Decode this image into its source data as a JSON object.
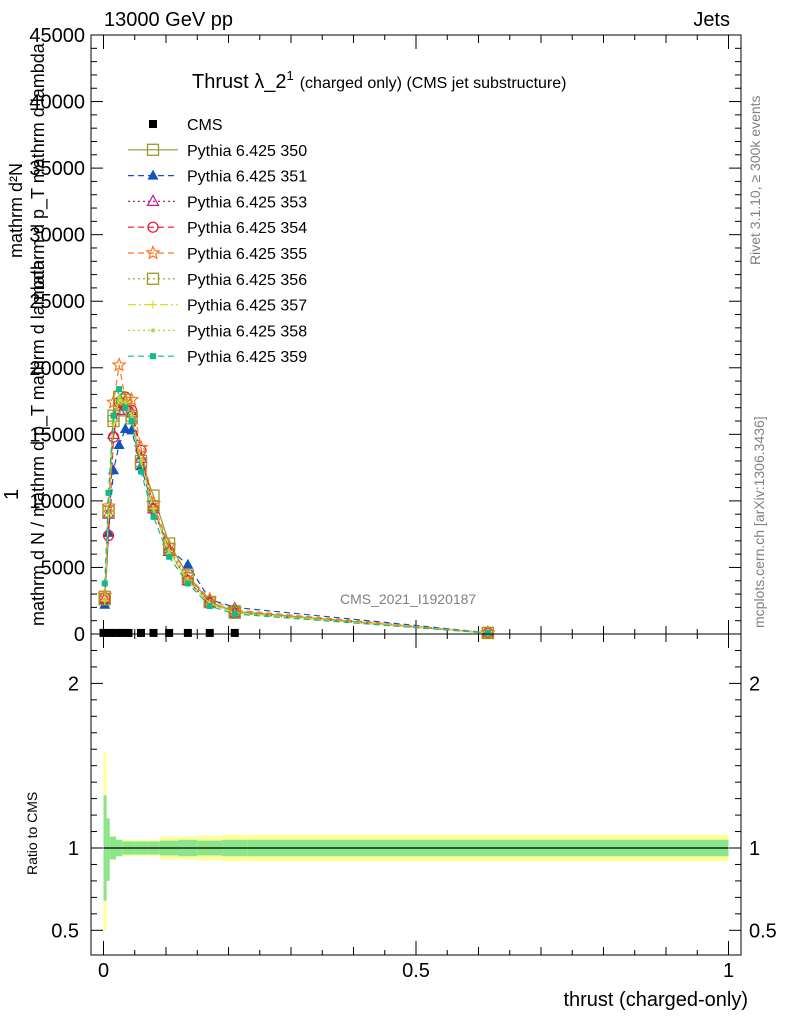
{
  "header": {
    "left": "13000 GeV pp",
    "right": "Jets"
  },
  "side_text": {
    "rivet": "Rivet 3.1.10, ≥ 300k events",
    "mcplots": "mcplots.cern.ch [arXiv:1306.3436]"
  },
  "chart_data": [
    {
      "type": "line",
      "title": "Thrust λ_2",
      "title_sup": "1",
      "title_suffix": "(charged only) (CMS jet substructure)",
      "ylabel_num": "1",
      "ylabel_den": "mathrm d N / mathrm d p_T mathrm d lambda",
      "ylabel_top": "mathrm d²N",
      "ylabel_top_den": "mathrm d p_T mathrm d lambda",
      "watermark": "CMS_2021_I1920187",
      "xlim": [
        -0.02,
        1.02
      ],
      "ylim": [
        0,
        45000
      ],
      "y_ticks": [
        0,
        5000,
        10000,
        15000,
        20000,
        25000,
        30000,
        35000,
        40000,
        45000
      ],
      "y_tick_labels": [
        "0",
        "5000",
        "10000",
        "15000",
        "20000",
        "25000",
        "30000",
        "35000",
        "40000",
        "45000"
      ],
      "legend_position": "top-left",
      "data_series": {
        "name": "CMS",
        "x": [
          0.0,
          0.01,
          0.02,
          0.03,
          0.04,
          0.06,
          0.08,
          0.105,
          0.135,
          0.17,
          0.21
        ],
        "y": [
          80,
          80,
          80,
          80,
          80,
          80,
          80,
          80,
          80,
          80,
          80
        ],
        "color": "#000000",
        "marker": "square-filled"
      },
      "series": [
        {
          "name": "Pythia 6.425 350",
          "color": "#999933",
          "marker": "square-open",
          "dash": "solid",
          "x": [
            0.002,
            0.008,
            0.016,
            0.025,
            0.035,
            0.045,
            0.06,
            0.08,
            0.105,
            0.135,
            0.17,
            0.21,
            0.615
          ],
          "y": [
            2800,
            9200,
            16400,
            17200,
            16800,
            16200,
            12800,
            10400,
            6800,
            4400,
            2400,
            1700,
            80
          ]
        },
        {
          "name": "Pythia 6.425 351",
          "color": "#1155bb",
          "marker": "triangle-filled",
          "dash": "dash",
          "x": [
            0.002,
            0.008,
            0.016,
            0.025,
            0.035,
            0.045,
            0.06,
            0.08,
            0.105,
            0.135,
            0.17,
            0.21,
            0.615
          ],
          "y": [
            2200,
            7600,
            12300,
            14200,
            15400,
            15300,
            12600,
            9400,
            6400,
            5200,
            2600,
            2000,
            100
          ]
        },
        {
          "name": "Pythia 6.425 353",
          "color": "#bb2288",
          "marker": "triangle-open",
          "dash": "dot",
          "x": [
            0.002,
            0.008,
            0.016,
            0.025,
            0.035,
            0.045,
            0.06,
            0.08,
            0.105,
            0.135,
            0.17,
            0.21,
            0.615
          ],
          "y": [
            2600,
            9000,
            15000,
            16800,
            17200,
            16600,
            13200,
            9400,
            6200,
            4000,
            2300,
            1600,
            80
          ]
        },
        {
          "name": "Pythia 6.425 354",
          "color": "#ee1133",
          "marker": "circle-open",
          "dash": "dash",
          "x": [
            0.002,
            0.008,
            0.016,
            0.025,
            0.035,
            0.045,
            0.06,
            0.08,
            0.105,
            0.135,
            0.17,
            0.21,
            0.615
          ],
          "y": [
            2700,
            7400,
            14800,
            17400,
            17800,
            16800,
            13800,
            9400,
            6200,
            4000,
            2300,
            1600,
            80
          ]
        },
        {
          "name": "Pythia 6.425 355",
          "color": "#ff7722",
          "marker": "star-open",
          "dash": "dash",
          "x": [
            0.002,
            0.008,
            0.016,
            0.025,
            0.035,
            0.045,
            0.06,
            0.08,
            0.105,
            0.135,
            0.17,
            0.21,
            0.615
          ],
          "y": [
            2900,
            9600,
            17400,
            20200,
            17600,
            17600,
            14000,
            9800,
            6600,
            4400,
            2600,
            1800,
            90
          ]
        },
        {
          "name": "Pythia 6.425 356",
          "color": "#999922",
          "marker": "square-open",
          "dash": "dot",
          "x": [
            0.002,
            0.008,
            0.016,
            0.025,
            0.035,
            0.045,
            0.06,
            0.08,
            0.105,
            0.135,
            0.17,
            0.21,
            0.615
          ],
          "y": [
            2600,
            9200,
            16000,
            17800,
            17600,
            16400,
            13000,
            9600,
            6400,
            4200,
            2400,
            1600,
            80
          ]
        },
        {
          "name": "Pythia 6.425 357",
          "color": "#dddd22",
          "marker": "plus",
          "dash": "dashdot",
          "x": [
            0.002,
            0.008,
            0.016,
            0.025,
            0.035,
            0.045,
            0.06,
            0.08,
            0.105,
            0.135,
            0.17,
            0.21,
            0.615
          ],
          "y": [
            2500,
            9000,
            15800,
            17600,
            17400,
            16400,
            13000,
            9400,
            6200,
            4000,
            2300,
            1600,
            80
          ]
        },
        {
          "name": "Pythia 6.425 358",
          "color": "#aadd33",
          "marker": "dot",
          "dash": "dot",
          "x": [
            0.002,
            0.008,
            0.016,
            0.025,
            0.035,
            0.045,
            0.06,
            0.08,
            0.105,
            0.135,
            0.17,
            0.21,
            0.615
          ],
          "y": [
            2500,
            9100,
            16000,
            17800,
            17400,
            16400,
            13000,
            9400,
            6200,
            4000,
            2300,
            1600,
            80
          ]
        },
        {
          "name": "Pythia 6.425 359",
          "color": "#11bb88",
          "marker": "square-filled-small",
          "dash": "dash",
          "x": [
            0.002,
            0.008,
            0.016,
            0.025,
            0.035,
            0.045,
            0.06,
            0.08,
            0.105,
            0.135,
            0.17,
            0.21,
            0.615
          ],
          "y": [
            3800,
            10600,
            16400,
            18400,
            17000,
            16000,
            12200,
            8800,
            5800,
            3800,
            2100,
            1500,
            70
          ]
        }
      ]
    },
    {
      "type": "area",
      "ylabel": "Ratio to CMS",
      "xlabel": "thrust (charged-only)",
      "xlim": [
        -0.02,
        1.02
      ],
      "ylim": [
        0.35,
        2.3
      ],
      "y_ticks": [
        0.5,
        1,
        2
      ],
      "y_tick_labels": [
        "0.5",
        "1",
        "2"
      ],
      "x_ticks": [
        0,
        0.5,
        1
      ],
      "x_tick_labels": [
        "0",
        "0.5",
        "1"
      ],
      "bin_edges": [
        0.0,
        0.005,
        0.01,
        0.02,
        0.03,
        0.04,
        0.05,
        0.07,
        0.09,
        0.12,
        0.15,
        0.19,
        0.23,
        1.0
      ],
      "band_stat": [
        [
          0.68,
          1.32
        ],
        [
          0.8,
          1.18
        ],
        [
          0.93,
          1.07
        ],
        [
          0.95,
          1.05
        ],
        [
          0.96,
          1.04
        ],
        [
          0.96,
          1.04
        ],
        [
          0.96,
          1.04
        ],
        [
          0.96,
          1.04
        ],
        [
          0.955,
          1.045
        ],
        [
          0.95,
          1.05
        ],
        [
          0.955,
          1.045
        ],
        [
          0.95,
          1.05
        ],
        [
          0.95,
          1.05
        ]
      ],
      "band_total": [
        [
          0.5,
          1.58
        ],
        [
          0.93,
          1.1
        ],
        [
          0.94,
          1.07
        ],
        [
          0.95,
          1.05
        ],
        [
          0.95,
          1.05
        ],
        [
          0.95,
          1.05
        ],
        [
          0.95,
          1.05
        ],
        [
          0.95,
          1.05
        ],
        [
          0.93,
          1.07
        ],
        [
          0.93,
          1.07
        ],
        [
          0.925,
          1.075
        ],
        [
          0.92,
          1.08
        ],
        [
          0.92,
          1.08
        ]
      ],
      "band_stat_color": "#8be58b",
      "band_total_color": "#ffff99"
    }
  ]
}
